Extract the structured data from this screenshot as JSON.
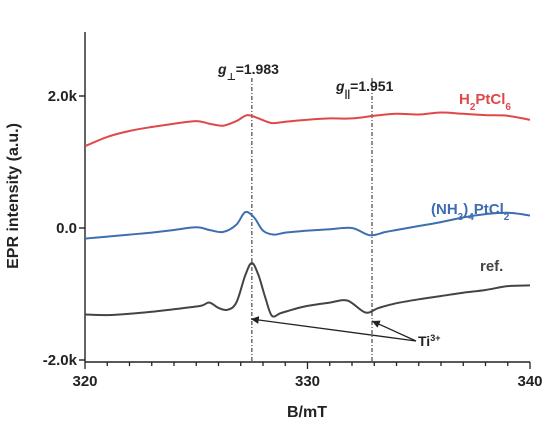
{
  "chart_data": {
    "type": "line",
    "xlabel": "B/mT",
    "ylabel": "EPR intensity (a.u.)",
    "xlim": [
      320,
      340
    ],
    "ylim": [
      -2.0,
      2.0
    ],
    "x_ticks": [
      320,
      330,
      340
    ],
    "x_tick_labels": [
      "320",
      "330",
      "340"
    ],
    "y_ticks": [
      -2.0,
      0.0,
      2.0
    ],
    "y_tick_labels": [
      "-2.0k",
      "0.0",
      "2.0k"
    ],
    "grid": false,
    "colors": {
      "h2ptcl6": "#e04848",
      "nh3ptcl2": "#3d6fb0",
      "ref": "#444444"
    },
    "series": [
      {
        "name": "H2PtCl6",
        "color": "#e04848",
        "x": [
          320,
          321,
          322,
          323,
          324,
          325,
          325.6,
          326.2,
          326.8,
          327.3,
          327.8,
          328.4,
          329.0,
          330,
          331,
          332,
          333,
          334,
          335,
          336,
          337,
          338,
          339,
          340
        ],
        "y": [
          1.24,
          1.38,
          1.47,
          1.53,
          1.58,
          1.62,
          1.58,
          1.55,
          1.62,
          1.71,
          1.66,
          1.59,
          1.61,
          1.64,
          1.66,
          1.66,
          1.7,
          1.73,
          1.72,
          1.75,
          1.73,
          1.71,
          1.7,
          1.64
        ]
      },
      {
        "name": "(NH3)4PtCl2",
        "color": "#3d6fb0",
        "x": [
          320,
          321,
          322,
          323,
          324,
          325,
          325.6,
          326.2,
          326.8,
          327.2,
          327.6,
          328.0,
          328.5,
          329.0,
          330,
          331,
          332,
          332.8,
          333.5,
          334,
          335,
          336,
          337,
          338,
          339,
          340
        ],
        "y": [
          -0.16,
          -0.13,
          -0.1,
          -0.07,
          -0.03,
          0.01,
          -0.03,
          -0.06,
          0.05,
          0.24,
          0.16,
          -0.04,
          -0.1,
          -0.07,
          -0.04,
          -0.02,
          0.0,
          -0.11,
          -0.06,
          -0.03,
          0.03,
          0.09,
          0.16,
          0.21,
          0.23,
          0.19
        ]
      },
      {
        "name": "ref.",
        "color": "#444444",
        "x": [
          320,
          321,
          322,
          323,
          324,
          325,
          325.3,
          325.6,
          326.0,
          326.4,
          326.8,
          327.2,
          327.5,
          327.8,
          328.1,
          328.4,
          328.8,
          329.5,
          330,
          331,
          331.8,
          332.6,
          333.2,
          334,
          335,
          336,
          337,
          338,
          339,
          340
        ],
        "y": [
          -1.31,
          -1.32,
          -1.3,
          -1.27,
          -1.23,
          -1.19,
          -1.17,
          -1.13,
          -1.21,
          -1.24,
          -1.13,
          -0.72,
          -0.53,
          -0.72,
          -1.05,
          -1.33,
          -1.29,
          -1.22,
          -1.18,
          -1.13,
          -1.1,
          -1.28,
          -1.21,
          -1.14,
          -1.08,
          -1.03,
          -0.98,
          -0.94,
          -0.88,
          -0.87
        ]
      }
    ],
    "series_labels": [
      {
        "key": "h2ptcl6",
        "base": "H",
        "sub1": "2",
        "mid": "PtCl",
        "sub2": "6"
      },
      {
        "key": "nh3ptcl2",
        "base": "(NH",
        "sub1": "3",
        "mid": ")",
        "sub2": "4",
        "tail": "PtCl",
        "sub3": "2"
      },
      {
        "key": "ref",
        "text": "ref."
      }
    ],
    "annotations": {
      "g_perp": {
        "symbol": "g",
        "subscript": "⊥",
        "value": "=1.983",
        "x": 327.5
      },
      "g_par": {
        "symbol": "g",
        "subscript": "||",
        "value": "=1.951",
        "x": 332.9
      },
      "ti": {
        "base": "Ti",
        "sup": "3+"
      }
    }
  }
}
